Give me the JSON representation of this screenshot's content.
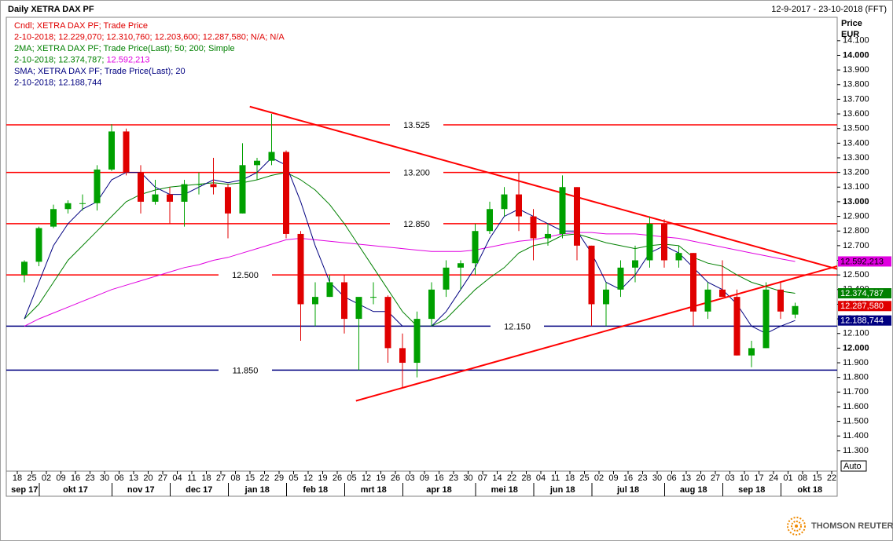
{
  "chart_data": {
    "type": "candlestick",
    "title": "Daily XETRA DAX PF",
    "date_range": "12-9-2017 - 23-10-2018 (FFT)",
    "price_label": "Price",
    "currency_label": "EUR",
    "auto_label": "Auto",
    "brand": "THOMSON REUTERS",
    "legend_lines": [
      [
        {
          "text": "Cndl; XETRA DAX PF; Trade Price",
          "color": "#e00000"
        }
      ],
      [
        {
          "text": "2-10-2018; 12.229,070; 12.310,760; 12.203,600; 12.287,580; N/A; N/A",
          "color": "#e00000"
        }
      ],
      [
        {
          "text": "2MA; XETRA DAX PF; Trade Price(Last);  50;  200; Simple",
          "color": "#008000"
        }
      ],
      [
        {
          "text": "2-10-2018; 12.374,787; ",
          "color": "#008000"
        },
        {
          "text": "12.592,213",
          "color": "#e000e0"
        }
      ],
      [
        {
          "text": "SMA; XETRA DAX PF; Trade Price(Last);  20",
          "color": "#000080"
        }
      ],
      [
        {
          "text": "2-10-2018; 12.188,744",
          "color": "#000080"
        }
      ]
    ],
    "categories": [
      "18",
      "25",
      "02",
      "09",
      "16",
      "23",
      "30",
      "06",
      "13",
      "20",
      "27",
      "04",
      "11",
      "18",
      "27",
      "08",
      "15",
      "22",
      "29",
      "05",
      "12",
      "19",
      "26",
      "05",
      "12",
      "19",
      "26",
      "03",
      "09",
      "16",
      "23",
      "30",
      "07",
      "14",
      "22",
      "28",
      "04",
      "11",
      "18",
      "25",
      "02",
      "09",
      "16",
      "23",
      "30",
      "06",
      "13",
      "20",
      "27",
      "03",
      "10",
      "17",
      "24",
      "01",
      "08",
      "15",
      "22"
    ],
    "months": [
      {
        "label": "sep 17",
        "weeks": 2
      },
      {
        "label": "okt 17",
        "weeks": 5
      },
      {
        "label": "nov 17",
        "weeks": 4
      },
      {
        "label": "dec 17",
        "weeks": 4
      },
      {
        "label": "jan 18",
        "weeks": 4
      },
      {
        "label": "feb 18",
        "weeks": 4
      },
      {
        "label": "mrt 18",
        "weeks": 4
      },
      {
        "label": "apr 18",
        "weeks": 5
      },
      {
        "label": "mei 18",
        "weeks": 4
      },
      {
        "label": "jun 18",
        "weeks": 4
      },
      {
        "label": "jul 18",
        "weeks": 5
      },
      {
        "label": "aug 18",
        "weeks": 4
      },
      {
        "label": "sep 18",
        "weeks": 4
      },
      {
        "label": "okt 18",
        "weeks": 4
      }
    ],
    "candles": {
      "up_color": "#00a000",
      "down_color": "#e00000",
      "last_label": "12.287,580",
      "last_color": "#e00000",
      "open": [
        12500,
        12590,
        12830,
        12950,
        12990,
        12990,
        13220,
        13480,
        13200,
        13000,
        13050,
        13000,
        13120,
        13120,
        13100,
        12920,
        13250,
        13280,
        13340,
        12780,
        12300,
        12350,
        12450,
        12200,
        12350,
        12350,
        12000,
        11900,
        12200,
        12400,
        12550,
        12580,
        12800,
        12950,
        13050,
        12900,
        12750,
        12780,
        13100,
        12700,
        12300,
        12400,
        12550,
        12600,
        12850,
        12600,
        12650,
        12250,
        12400,
        12350,
        11950,
        12000,
        12400,
        12229.07,
        null,
        null,
        null
      ],
      "high": [
        12600,
        12830,
        12980,
        13010,
        13050,
        13250,
        13530,
        13500,
        13250,
        13150,
        13100,
        13150,
        13200,
        13300,
        13120,
        13400,
        13300,
        13600,
        13350,
        12800,
        12450,
        12500,
        12500,
        12300,
        12450,
        12360,
        12100,
        12250,
        12450,
        12600,
        12600,
        12850,
        13000,
        13100,
        13200,
        12950,
        12850,
        13180,
        13100,
        12700,
        12450,
        12600,
        12700,
        12900,
        12880,
        12700,
        12650,
        12450,
        12600,
        12400,
        12050,
        12450,
        12450,
        12310.76,
        null,
        null,
        null
      ],
      "low": [
        12450,
        12560,
        12820,
        12920,
        12940,
        12940,
        13210,
        13180,
        12920,
        12980,
        12850,
        12830,
        13050,
        13050,
        12750,
        12920,
        13150,
        13250,
        12750,
        12050,
        12150,
        12350,
        12100,
        11850,
        12300,
        11900,
        11730,
        11800,
        12150,
        12350,
        12400,
        12500,
        12780,
        12900,
        12800,
        12600,
        12700,
        12750,
        12600,
        12150,
        12150,
        12350,
        12450,
        12550,
        12550,
        12550,
        12150,
        12200,
        12350,
        11950,
        11870,
        12000,
        12200,
        12203.6,
        null,
        null,
        null
      ],
      "close": [
        12590,
        12820,
        12950,
        12990,
        12990,
        13220,
        13480,
        13200,
        13000,
        13050,
        13000,
        13120,
        13120,
        13100,
        12920,
        13250,
        13280,
        13340,
        12780,
        12300,
        12350,
        12450,
        12200,
        12350,
        12350,
        12000,
        11900,
        12200,
        12400,
        12550,
        12580,
        12800,
        12950,
        13050,
        12900,
        12750,
        12780,
        13100,
        12700,
        12300,
        12400,
        12550,
        12600,
        12850,
        12600,
        12650,
        12250,
        12400,
        12350,
        11950,
        12000,
        12400,
        12250,
        12287.58,
        null,
        null,
        null
      ]
    },
    "series": [
      {
        "color": "#e000e0",
        "label_text": "#000000",
        "last_label": "12.592,213",
        "values": [
          12150,
          12200,
          12240,
          12280,
          12320,
          12360,
          12400,
          12430,
          12460,
          12490,
          12520,
          12550,
          12570,
          12600,
          12620,
          12650,
          12680,
          12710,
          12740,
          12750,
          12740,
          12730,
          12720,
          12710,
          12700,
          12690,
          12680,
          12670,
          12660,
          12660,
          12660,
          12670,
          12690,
          12710,
          12730,
          12740,
          12760,
          12780,
          12790,
          12790,
          12780,
          12780,
          12780,
          12770,
          12760,
          12750,
          12730,
          12710,
          12690,
          12670,
          12650,
          12630,
          12610,
          12592.213,
          null,
          null,
          null
        ]
      },
      {
        "color": "#008000",
        "label_text": "#ffffff",
        "last_label": "12.374,787",
        "values": [
          12200,
          12300,
          12450,
          12600,
          12700,
          12800,
          12900,
          13000,
          13050,
          13080,
          13100,
          13110,
          13120,
          13130,
          13120,
          13130,
          13150,
          13180,
          13200,
          13150,
          13080,
          12980,
          12850,
          12700,
          12550,
          12400,
          12250,
          12150,
          12150,
          12200,
          12300,
          12400,
          12480,
          12550,
          12650,
          12700,
          12720,
          12770,
          12780,
          12750,
          12720,
          12700,
          12680,
          12700,
          12710,
          12700,
          12620,
          12580,
          12560,
          12500,
          12450,
          12420,
          12390,
          12374.787,
          null,
          null,
          null
        ]
      },
      {
        "color": "#000080",
        "label_text": "#ffffff",
        "last_label": "12.188,744",
        "values": [
          12200,
          12450,
          12700,
          12850,
          12950,
          13000,
          13150,
          13200,
          13200,
          13100,
          13050,
          13050,
          13100,
          13150,
          13130,
          13150,
          13200,
          13300,
          13250,
          13000,
          12700,
          12450,
          12350,
          12300,
          12250,
          12250,
          12150,
          12150,
          12150,
          12250,
          12400,
          12550,
          12750,
          12900,
          12950,
          12900,
          12850,
          12800,
          12800,
          12650,
          12450,
          12400,
          12500,
          12650,
          12700,
          12650,
          12550,
          12450,
          12400,
          12300,
          12150,
          12100,
          12150,
          12188.744,
          null,
          null,
          null
        ]
      }
    ],
    "levels": [
      {
        "value": 13525,
        "label": "13.525",
        "color": "#ff0000"
      },
      {
        "value": 13200,
        "label": "13.200",
        "color": "#ff0000"
      },
      {
        "value": 12850,
        "label": "12.850",
        "color": "#ff0000"
      },
      {
        "value": 12500,
        "label": "12.500",
        "color": "#ff0000"
      },
      {
        "value": 12150,
        "label": "12.150",
        "color": "#000080"
      },
      {
        "value": 11850,
        "label": "11.850",
        "color": "#000080"
      }
    ],
    "trendlines": [
      {
        "color": "#ff0000",
        "x": [
          15.5,
          55.9
        ],
        "values": [
          13650,
          12540
        ]
      },
      {
        "color": "#ff0000",
        "x": [
          22.8,
          55.9
        ],
        "values": [
          11640,
          12560
        ]
      }
    ],
    "ylim": [
      11160,
      14260
    ],
    "yticks": [
      {
        "value": 11300,
        "label": "11.300"
      },
      {
        "value": 11400,
        "label": "11.400"
      },
      {
        "value": 11500,
        "label": "11.500"
      },
      {
        "value": 11600,
        "label": "11.600"
      },
      {
        "value": 11700,
        "label": "11.700"
      },
      {
        "value": 11800,
        "label": "11.800"
      },
      {
        "value": 11900,
        "label": "11.900"
      },
      {
        "value": 12000,
        "label": "12.000"
      },
      {
        "value": 12100,
        "label": "12.100"
      },
      {
        "value": 12200,
        "label": "12.200"
      },
      {
        "value": 12300,
        "label": "12.300"
      },
      {
        "value": 12400,
        "label": "12.400"
      },
      {
        "value": 12500,
        "label": "12.500"
      },
      {
        "value": 12600,
        "label": "12.600"
      },
      {
        "value": 12700,
        "label": "12.700"
      },
      {
        "value": 12800,
        "label": "12.800"
      },
      {
        "value": 12900,
        "label": "12.900"
      },
      {
        "value": 13000,
        "label": "13.000"
      },
      {
        "value": 13100,
        "label": "13.100"
      },
      {
        "value": 13200,
        "label": "13.200"
      },
      {
        "value": 13300,
        "label": "13.300"
      },
      {
        "value": 13400,
        "label": "13.400"
      },
      {
        "value": 13500,
        "label": "13.500"
      },
      {
        "value": 13600,
        "label": "13.600"
      },
      {
        "value": 13700,
        "label": "13.700"
      },
      {
        "value": 13800,
        "label": "13.800"
      },
      {
        "value": 13900,
        "label": "13.900"
      },
      {
        "value": 14000,
        "label": "14.000"
      },
      {
        "value": 14100,
        "label": "14.100"
      }
    ]
  }
}
